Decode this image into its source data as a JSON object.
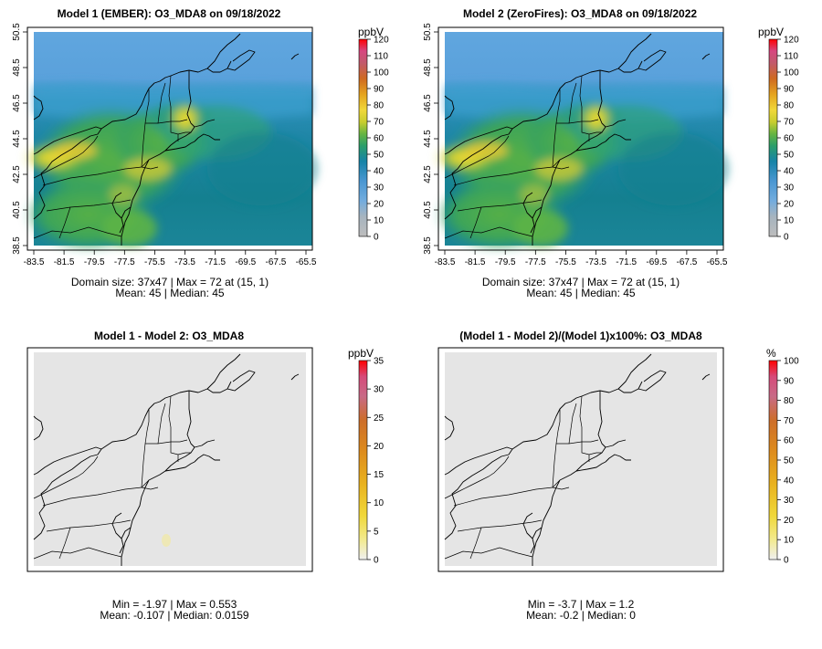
{
  "chart_data": [
    {
      "type": "heatmap",
      "title": "Model 1 (EMBER): O3_MDA8 on 09/18/2022",
      "x_ticks": [
        "-83.5",
        "-81.5",
        "-79.5",
        "-77.5",
        "-75.5",
        "-73.5",
        "-71.5",
        "-69.5",
        "-67.5",
        "-65.5"
      ],
      "y_ticks": [
        "38.5",
        "40.5",
        "42.5",
        "44.5",
        "46.5",
        "48.5",
        "50.5"
      ],
      "colorbar": {
        "unit": "ppbV",
        "min": 0,
        "max": 120,
        "ticks": [
          "0",
          "10",
          "20",
          "30",
          "40",
          "50",
          "60",
          "70",
          "80",
          "90",
          "100",
          "110",
          "120"
        ]
      },
      "stats_line1": "Domain size: 37x47 | Max = 72 at (15, 1)",
      "stats_line2": "Mean: 45 |  Median: 45"
    },
    {
      "type": "heatmap",
      "title": "Model 2 (ZeroFires): O3_MDA8 on 09/18/2022",
      "x_ticks": [
        "-83.5",
        "-81.5",
        "-79.5",
        "-77.5",
        "-75.5",
        "-73.5",
        "-71.5",
        "-69.5",
        "-67.5",
        "-65.5"
      ],
      "y_ticks": [
        "38.5",
        "40.5",
        "42.5",
        "44.5",
        "46.5",
        "48.5",
        "50.5"
      ],
      "colorbar": {
        "unit": "ppbV",
        "min": 0,
        "max": 120,
        "ticks": [
          "0",
          "10",
          "20",
          "30",
          "40",
          "50",
          "60",
          "70",
          "80",
          "90",
          "100",
          "110",
          "120"
        ]
      },
      "stats_line1": "Domain size: 37x47 | Max = 72 at (15, 1)",
      "stats_line2": "Mean: 45 |  Median: 45"
    },
    {
      "type": "heatmap",
      "title": "Model 1 - Model 2: O3_MDA8",
      "colorbar": {
        "unit": "ppbV",
        "min": 0,
        "max": 35,
        "ticks": [
          "0",
          "5",
          "10",
          "15",
          "20",
          "25",
          "30",
          "35"
        ]
      },
      "stats_line1": "Min = -1.97 | Max = 0.553",
      "stats_line2": "Mean: -0.107 |  Median: 0.0159"
    },
    {
      "type": "heatmap",
      "title": "(Model 1 - Model 2)/(Model 1)x100%: O3_MDA8",
      "colorbar": {
        "unit": "%",
        "min": 0,
        "max": 100,
        "ticks": [
          "0",
          "10",
          "20",
          "30",
          "40",
          "50",
          "60",
          "70",
          "80",
          "90",
          "100"
        ]
      },
      "stats_line1": "Min = -3.7 | Max = 1.2",
      "stats_line2": "Mean: -0.2 |  Median: 0"
    }
  ]
}
